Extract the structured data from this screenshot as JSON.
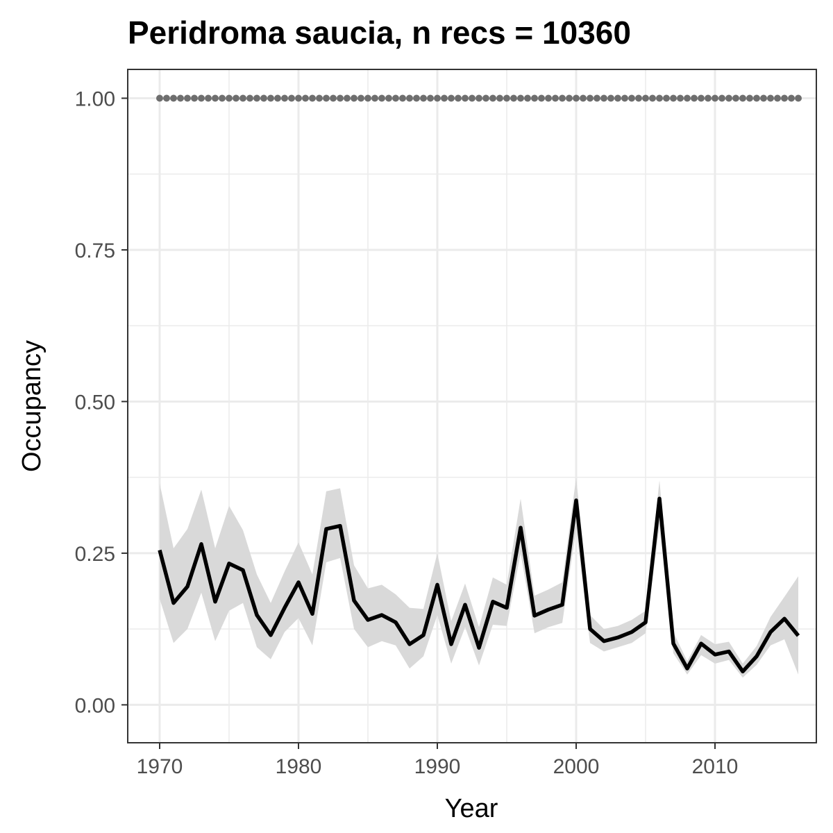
{
  "chart_data": {
    "type": "line",
    "title": "Peridroma saucia, n recs = 10360",
    "xlabel": "Year",
    "ylabel": "Occupancy",
    "xlim": [
      1967.7,
      2017.3
    ],
    "ylim": [
      -0.0625,
      1.0475
    ],
    "x_ticks": [
      1970,
      1980,
      1990,
      2000,
      2010
    ],
    "x_tick_labels": [
      "1970",
      "1980",
      "1990",
      "2000",
      "2010"
    ],
    "y_ticks": [
      0,
      0.25,
      0.5,
      0.75,
      1.0
    ],
    "y_tick_labels": [
      "0.00",
      "0.25",
      "0.50",
      "0.75",
      "1.00"
    ],
    "grid": true,
    "colors": {
      "line": "#000000",
      "ribbon": "#d9d9d9",
      "dots": "#6e6e6e",
      "grid": "#ebebeb",
      "panel_border": "#333333"
    },
    "x": [
      1970,
      1971,
      1972,
      1973,
      1974,
      1975,
      1976,
      1977,
      1978,
      1979,
      1980,
      1981,
      1982,
      1983,
      1984,
      1985,
      1986,
      1987,
      1988,
      1989,
      1990,
      1991,
      1992,
      1993,
      1994,
      1995,
      1996,
      1997,
      1998,
      1999,
      2000,
      2001,
      2002,
      2003,
      2004,
      2005,
      2006,
      2007,
      2008,
      2009,
      2010,
      2011,
      2012,
      2013,
      2014,
      2015,
      2016
    ],
    "series": [
      {
        "values": [
          0.255,
          0.168,
          0.195,
          0.265,
          0.17,
          0.233,
          0.222,
          0.148,
          0.115,
          0.16,
          0.202,
          0.15,
          0.29,
          0.295,
          0.172,
          0.14,
          0.148,
          0.136,
          0.1,
          0.115,
          0.198,
          0.1,
          0.165,
          0.094,
          0.17,
          0.16,
          0.292,
          0.147,
          0.157,
          0.165,
          0.337,
          0.125,
          0.105,
          0.111,
          0.12,
          0.136,
          0.34,
          0.101,
          0.06,
          0.101,
          0.083,
          0.088,
          0.055,
          0.08,
          0.12,
          0.142,
          0.114
        ],
        "lower": [
          0.175,
          0.102,
          0.125,
          0.185,
          0.105,
          0.155,
          0.168,
          0.095,
          0.075,
          0.12,
          0.143,
          0.098,
          0.235,
          0.242,
          0.125,
          0.095,
          0.105,
          0.098,
          0.06,
          0.08,
          0.148,
          0.068,
          0.128,
          0.065,
          0.132,
          0.13,
          0.25,
          0.118,
          0.128,
          0.135,
          0.29,
          0.102,
          0.088,
          0.095,
          0.102,
          0.118,
          0.295,
          0.085,
          0.05,
          0.082,
          0.068,
          0.074,
          0.045,
          0.066,
          0.098,
          0.108,
          0.05
        ],
        "upper": [
          0.365,
          0.258,
          0.29,
          0.355,
          0.258,
          0.328,
          0.288,
          0.215,
          0.168,
          0.22,
          0.268,
          0.215,
          0.352,
          0.357,
          0.23,
          0.192,
          0.198,
          0.182,
          0.16,
          0.158,
          0.25,
          0.138,
          0.2,
          0.128,
          0.21,
          0.198,
          0.34,
          0.18,
          0.19,
          0.202,
          0.375,
          0.148,
          0.125,
          0.13,
          0.14,
          0.155,
          0.37,
          0.12,
          0.072,
          0.115,
          0.1,
          0.104,
          0.068,
          0.097,
          0.145,
          0.178,
          0.212
        ]
      },
      {
        "style": "dotted",
        "values": [
          1,
          1,
          1,
          1,
          1,
          1,
          1,
          1,
          1,
          1,
          1,
          1,
          1,
          1,
          1,
          1,
          1,
          1,
          1,
          1,
          1,
          1,
          1,
          1,
          1,
          1,
          1,
          1,
          1,
          1,
          1,
          1,
          1,
          1,
          1,
          1,
          1,
          1,
          1,
          1,
          1,
          1,
          1,
          1,
          1,
          1,
          1
        ]
      }
    ]
  }
}
